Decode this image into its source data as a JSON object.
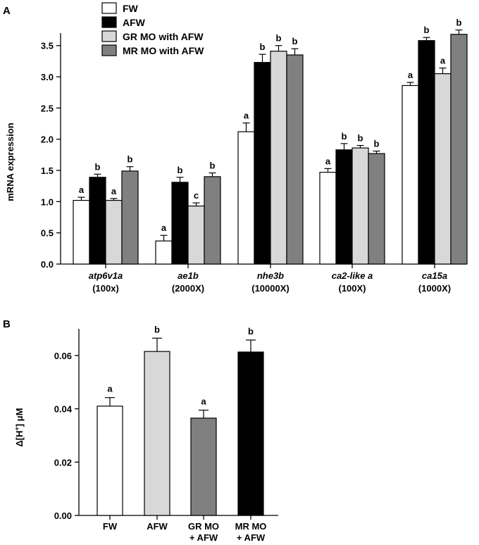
{
  "colors": {
    "FW": "#ffffff",
    "AFW": "#000000",
    "GR_MO_with_AFW": "#d8d8d8",
    "MR_MO_with_AFW": "#808080",
    "axis": "#000000"
  },
  "chart_data": [
    {
      "panel": "A",
      "type": "bar",
      "title": "",
      "xlabel": "",
      "ylabel": "mRNA expression",
      "ylim": [
        0,
        3.7
      ],
      "yticks": [
        "0.0",
        "0.5",
        "1.0",
        "1.5",
        "2.0",
        "2.5",
        "3.0",
        "3.5"
      ],
      "legend_position": "top-left",
      "categories": [
        {
          "name": "atp6v1a",
          "scale": "(100x)"
        },
        {
          "name": "ae1b",
          "scale": "(2000X)"
        },
        {
          "name": "nhe3b",
          "scale": "(10000X)"
        },
        {
          "name": "ca2-like a",
          "scale": "(100X)"
        },
        {
          "name": "ca15a",
          "scale": "(1000X)"
        }
      ],
      "series": [
        {
          "name": "FW",
          "color_key": "FW",
          "values": [
            1.02,
            0.37,
            2.12,
            1.47,
            2.86
          ],
          "errors": [
            0.05,
            0.09,
            0.14,
            0.06,
            0.05
          ],
          "letters": [
            "a",
            "a",
            "a",
            "a",
            "a"
          ]
        },
        {
          "name": "AFW",
          "color_key": "AFW",
          "values": [
            1.39,
            1.31,
            3.23,
            1.83,
            3.58
          ],
          "errors": [
            0.05,
            0.08,
            0.13,
            0.1,
            0.05
          ],
          "letters": [
            "b",
            "b",
            "b",
            "b",
            "b"
          ]
        },
        {
          "name": "GR MO with AFW",
          "color_key": "GR_MO_with_AFW",
          "values": [
            1.02,
            0.93,
            3.41,
            1.86,
            3.05
          ],
          "errors": [
            0.03,
            0.05,
            0.09,
            0.04,
            0.09
          ],
          "letters": [
            "a",
            "c",
            "b",
            "b",
            "a"
          ]
        },
        {
          "name": "MR MO with AFW",
          "color_key": "MR_MO_with_AFW",
          "values": [
            1.49,
            1.4,
            3.35,
            1.77,
            3.68
          ],
          "errors": [
            0.07,
            0.06,
            0.1,
            0.04,
            0.07
          ],
          "letters": [
            "b",
            "b",
            "b",
            "b",
            "b"
          ]
        }
      ]
    },
    {
      "panel": "B",
      "type": "bar",
      "title": "",
      "xlabel": "",
      "ylabel_prefix": "Δ[H",
      "ylabel_sup": "+",
      "ylabel_suffix": "] μM",
      "ylim": [
        0,
        0.07
      ],
      "yticks": [
        "0.00",
        "0.02",
        "0.04",
        "0.06"
      ],
      "categories": [
        {
          "line1": "FW",
          "line2": ""
        },
        {
          "line1": "AFW",
          "line2": ""
        },
        {
          "line1": "GR MO",
          "line2": "+ AFW"
        },
        {
          "line1": "MR MO",
          "line2": "+ AFW"
        }
      ],
      "values": [
        0.041,
        0.0615,
        0.0365,
        0.0613
      ],
      "errors": [
        0.0032,
        0.005,
        0.003,
        0.0045
      ],
      "letters": [
        "a",
        "b",
        "a",
        "b"
      ],
      "bar_colors": [
        "#ffffff",
        "#d8d8d8",
        "#808080",
        "#000000"
      ]
    }
  ]
}
